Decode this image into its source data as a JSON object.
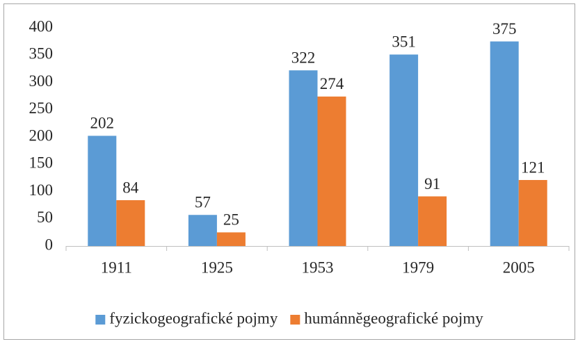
{
  "chart_data": {
    "type": "bar",
    "categories": [
      "1911",
      "1925",
      "1953",
      "1979",
      "2005"
    ],
    "series": [
      {
        "name": "fyzickogeografické pojmy",
        "color": "#5b9bd5",
        "values": [
          202,
          57,
          322,
          351,
          375
        ]
      },
      {
        "name": "humánnĕgeografické pojmy",
        "color": "#ed7d31",
        "values": [
          84,
          25,
          274,
          91,
          121
        ]
      }
    ],
    "ylim": [
      0,
      400
    ],
    "yticks": [
      0,
      50,
      100,
      150,
      200,
      250,
      300,
      350,
      400
    ],
    "grid": false,
    "legend": "bottom"
  }
}
